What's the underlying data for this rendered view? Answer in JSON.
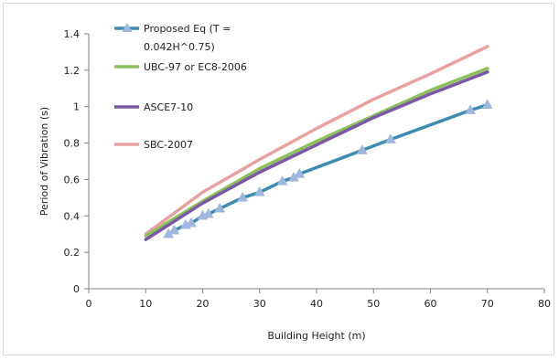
{
  "chart_data": {
    "type": "line",
    "title": "",
    "xlabel": "Building Height  (m)",
    "ylabel": "Period of Vibration (s)",
    "xlim": [
      0,
      80
    ],
    "ylim": [
      0,
      1.4
    ],
    "x_ticks": [
      0,
      10,
      20,
      30,
      40,
      50,
      60,
      70,
      80
    ],
    "x_tick_labels": [
      "0",
      "10",
      "20",
      "30",
      "40",
      "50",
      "60",
      "70",
      "80"
    ],
    "y_ticks": [
      0,
      0.2,
      0.4,
      0.6,
      0.8,
      1.0,
      1.2,
      1.4
    ],
    "y_tick_labels": [
      "0",
      "0.2",
      "0.4",
      "0.6",
      "0.8",
      "1",
      "1.2",
      "1.4"
    ],
    "grid": false,
    "legend_position": "top-left",
    "series": [
      {
        "name": "Proposed Eq (T = 0.042H^0.75)",
        "legend_lines": [
          "Proposed Eq (T =",
          "0.042H^0.75)"
        ],
        "color": "#3c8bb0",
        "marker": "triangle",
        "marker_color": "#9fb7de",
        "x": [
          14,
          15,
          17,
          18,
          20,
          21,
          23,
          27,
          30,
          34,
          36,
          37,
          48,
          53,
          67,
          70
        ],
        "y": [
          0.3,
          0.32,
          0.35,
          0.36,
          0.4,
          0.41,
          0.44,
          0.5,
          0.53,
          0.59,
          0.61,
          0.63,
          0.76,
          0.82,
          0.98,
          1.01
        ]
      },
      {
        "name": "UBC-97 or EC8-2006",
        "color": "#8dc05a",
        "x": [
          10,
          20,
          30,
          40,
          50,
          60,
          70
        ],
        "y": [
          0.29,
          0.48,
          0.66,
          0.81,
          0.95,
          1.09,
          1.21
        ]
      },
      {
        "name": "ASCE7-10",
        "color": "#7b58a6",
        "x": [
          10,
          20,
          30,
          40,
          50,
          60,
          70
        ],
        "y": [
          0.27,
          0.47,
          0.64,
          0.79,
          0.94,
          1.07,
          1.19
        ]
      },
      {
        "name": "SBC-2007",
        "color": "#e8a0a0",
        "x": [
          10,
          20,
          30,
          40,
          50,
          60,
          70
        ],
        "y": [
          0.3,
          0.53,
          0.71,
          0.88,
          1.04,
          1.18,
          1.33
        ]
      }
    ]
  }
}
